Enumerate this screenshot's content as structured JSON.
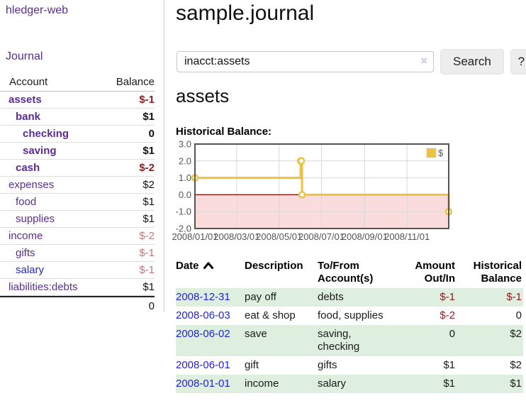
{
  "app": {
    "title": "hledger-web"
  },
  "colors": {
    "accent_purple": "#5b2d90",
    "link_blue": "#2323dc",
    "negative_strong": "#8c1c1c",
    "negative_dim": "#c17878",
    "row_green": "#dfefdf",
    "chart_line": "#edc240",
    "chart_negative_fill": "#fbdcdc",
    "chart_zero_line": "#8b0000"
  },
  "sidebar": {
    "journal_link": "Journal",
    "accounts_table": {
      "headers": [
        "Account",
        "Balance"
      ],
      "rows": [
        {
          "label": "assets",
          "balance": "$-1",
          "depth": 1,
          "bold": true,
          "balance_tone": "negative-strong",
          "link_tone": "visited"
        },
        {
          "label": "bank",
          "balance": "$1",
          "depth": 2,
          "bold": true,
          "balance_tone": "",
          "link_tone": "visited"
        },
        {
          "label": "checking",
          "balance": "0",
          "depth": 3,
          "bold": true,
          "balance_tone": "",
          "link_tone": "visited"
        },
        {
          "label": "saving",
          "balance": "$1",
          "depth": 3,
          "bold": true,
          "balance_tone": "",
          "link_tone": "visited"
        },
        {
          "label": "cash",
          "balance": "$-2",
          "depth": 2,
          "bold": true,
          "balance_tone": "negative-strong",
          "link_tone": "visited"
        },
        {
          "label": "expenses",
          "balance": "$2",
          "depth": 1,
          "bold": false,
          "balance_tone": "",
          "link_tone": "visited"
        },
        {
          "label": "food",
          "balance": "$1",
          "depth": 2,
          "bold": false,
          "balance_tone": "",
          "link_tone": "visited"
        },
        {
          "label": "supplies",
          "balance": "$1",
          "depth": 2,
          "bold": false,
          "balance_tone": "",
          "link_tone": "visited"
        },
        {
          "label": "income",
          "balance": "$-2",
          "depth": 1,
          "bold": false,
          "balance_tone": "negative-dim",
          "link_tone": "visited"
        },
        {
          "label": "gifts",
          "balance": "$-1",
          "depth": 2,
          "bold": false,
          "balance_tone": "negative-dim",
          "link_tone": "visited"
        },
        {
          "label": "salary",
          "balance": "$-1",
          "depth": 2,
          "bold": false,
          "balance_tone": "negative-dim",
          "link_tone": "unvisited"
        },
        {
          "label": "liabilities:debts",
          "balance": "$1",
          "depth": 1,
          "bold": false,
          "balance_tone": "",
          "link_tone": "visited"
        }
      ],
      "total": "0"
    }
  },
  "main": {
    "title": "sample.journal",
    "search": {
      "value": "inacct:assets",
      "clear_icon": "×",
      "search_button": "Search",
      "help_button": "?"
    },
    "account_heading": "assets",
    "chart_label": "Historical Balance:",
    "register_table": {
      "headers": [
        "Date",
        "Description",
        "To/From Account(s)",
        "Amount Out/In",
        "Historical Balance"
      ],
      "rows": [
        {
          "date": "2008-12-31",
          "description": "pay off",
          "accounts": "debts",
          "amount": "$-1",
          "amount_negative": true,
          "balance": "$-1",
          "balance_negative": true,
          "shaded": true
        },
        {
          "date": "2008-06-03",
          "description": "eat & shop",
          "accounts": "food, supplies",
          "amount": "$-2",
          "amount_negative": true,
          "balance": "0",
          "balance_negative": false,
          "shaded": false
        },
        {
          "date": "2008-06-02",
          "description": "save",
          "accounts": "saving, checking",
          "amount": "0",
          "amount_negative": false,
          "balance": "$2",
          "balance_negative": false,
          "shaded": true
        },
        {
          "date": "2008-06-01",
          "description": "gift",
          "accounts": "gifts",
          "amount": "$1",
          "amount_negative": false,
          "balance": "$2",
          "balance_negative": false,
          "shaded": false
        },
        {
          "date": "2008-01-01",
          "description": "income",
          "accounts": "salary",
          "amount": "$1",
          "amount_negative": false,
          "balance": "$1",
          "balance_negative": false,
          "shaded": true
        }
      ]
    }
  },
  "chart_data": {
    "type": "line",
    "step": true,
    "title": "Historical Balance",
    "series": [
      {
        "name": "$",
        "color": "#edc240",
        "points": [
          {
            "date": "2008-01-01",
            "value": 1.0
          },
          {
            "date": "2008-06-01",
            "value": 2.0
          },
          {
            "date": "2008-06-02",
            "value": 2.0
          },
          {
            "date": "2008-06-03",
            "value": 0.0
          },
          {
            "date": "2008-12-31",
            "value": -1.0
          }
        ]
      }
    ],
    "xrange": [
      "2008-01-01",
      "2008-12-31"
    ],
    "ylim": [
      -2.0,
      3.0
    ],
    "yticks": [
      3.0,
      2.0,
      1.0,
      0.0,
      -1.0,
      -2.0
    ],
    "xticks": [
      {
        "label": "2008/01/01",
        "date": "2008-01-01"
      },
      {
        "label": "2008/03/01",
        "date": "2008-03-01"
      },
      {
        "label": "2008/05/01",
        "date": "2008-05-01"
      },
      {
        "label": "2008/07/01",
        "date": "2008-07-01"
      },
      {
        "label": "2008/09/01",
        "date": "2008-09-01"
      },
      {
        "label": "2008/11/01",
        "date": "2008-11-01"
      }
    ],
    "legend": {
      "label": "$",
      "position": "top-right"
    },
    "grid": true,
    "negative_region_color": "#fbdcdc",
    "zero_line_color": "#8b0000"
  }
}
